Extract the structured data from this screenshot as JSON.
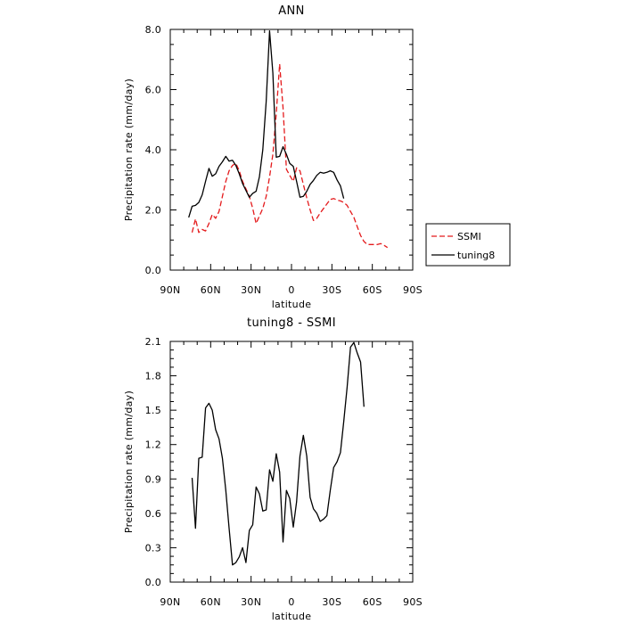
{
  "chart_data": [
    {
      "type": "line",
      "title": "ANN",
      "xlabel": "latitude",
      "ylabel": "Precipitation rate (mm/day)",
      "xlim": [
        90,
        -90
      ],
      "ylim": [
        0,
        8
      ],
      "x_ticks": [
        90,
        60,
        30,
        0,
        -30,
        -60,
        -90
      ],
      "x_tick_labels": [
        "90N",
        "60N",
        "30N",
        "0",
        "30S",
        "60S",
        "90S"
      ],
      "y_ticks": [
        0,
        2,
        4,
        6,
        8
      ],
      "y_tick_labels": [
        "0.0",
        "2.0",
        "4.0",
        "6.0",
        "8.0"
      ],
      "legend": {
        "position": "right",
        "entries": [
          "SSMI",
          "tuning8"
        ]
      },
      "series": [
        {
          "name": "SSMI",
          "color": "#e41a1c",
          "style": "dashed",
          "points": [
            [
              73.8,
              1.25
            ],
            [
              71.3,
              1.7
            ],
            [
              68.8,
              1.25
            ],
            [
              66.3,
              1.35
            ],
            [
              63.8,
              1.3
            ],
            [
              61.3,
              1.55
            ],
            [
              58.8,
              1.85
            ],
            [
              56.3,
              1.72
            ],
            [
              53.8,
              1.95
            ],
            [
              51.3,
              2.45
            ],
            [
              48.8,
              2.95
            ],
            [
              46.3,
              3.3
            ],
            [
              43.8,
              3.48
            ],
            [
              41.3,
              3.55
            ],
            [
              38.8,
              3.3
            ],
            [
              36.3,
              2.95
            ],
            [
              33.8,
              2.7
            ],
            [
              31.3,
              2.45
            ],
            [
              28.8,
              2.05
            ],
            [
              26.3,
              1.55
            ],
            [
              23.8,
              1.8
            ],
            [
              21.3,
              2.05
            ],
            [
              18.8,
              2.45
            ],
            [
              16.3,
              3.1
            ],
            [
              13.8,
              3.85
            ],
            [
              11.3,
              5.2
            ],
            [
              8.8,
              6.85
            ],
            [
              6.3,
              5.4
            ],
            [
              3.8,
              3.35
            ],
            [
              1.3,
              3.15
            ],
            [
              -1.3,
              2.95
            ],
            [
              -3.8,
              3.4
            ],
            [
              -6.3,
              3.3
            ],
            [
              -8.8,
              2.85
            ],
            [
              -11.3,
              2.4
            ],
            [
              -13.8,
              2.0
            ],
            [
              -16.3,
              1.65
            ],
            [
              -18.8,
              1.72
            ],
            [
              -21.3,
              1.9
            ],
            [
              -23.8,
              2.05
            ],
            [
              -26.3,
              2.2
            ],
            [
              -28.8,
              2.35
            ],
            [
              -31.3,
              2.38
            ],
            [
              -33.8,
              2.33
            ],
            [
              -36.3,
              2.3
            ],
            [
              -38.8,
              2.25
            ],
            [
              -41.3,
              2.15
            ],
            [
              -43.8,
              1.95
            ],
            [
              -46.3,
              1.75
            ],
            [
              -48.8,
              1.45
            ],
            [
              -51.3,
              1.15
            ],
            [
              -53.8,
              0.95
            ],
            [
              -56.3,
              0.85
            ],
            [
              -58.8,
              0.85
            ],
            [
              -61.3,
              0.85
            ],
            [
              -63.8,
              0.85
            ],
            [
              -66.3,
              0.88
            ],
            [
              -68.8,
              0.82
            ],
            [
              -71.3,
              0.75
            ]
          ]
        },
        {
          "name": "tuning8",
          "color": "#000000",
          "style": "solid",
          "points": [
            [
              76.3,
              1.75
            ],
            [
              73.8,
              2.12
            ],
            [
              71.3,
              2.15
            ],
            [
              68.8,
              2.25
            ],
            [
              66.3,
              2.5
            ],
            [
              63.8,
              2.95
            ],
            [
              61.3,
              3.38
            ],
            [
              58.8,
              3.12
            ],
            [
              56.3,
              3.2
            ],
            [
              53.8,
              3.45
            ],
            [
              51.3,
              3.6
            ],
            [
              48.8,
              3.78
            ],
            [
              46.3,
              3.62
            ],
            [
              43.8,
              3.65
            ],
            [
              41.3,
              3.48
            ],
            [
              38.8,
              3.2
            ],
            [
              36.3,
              2.88
            ],
            [
              33.8,
              2.65
            ],
            [
              31.3,
              2.42
            ],
            [
              28.8,
              2.55
            ],
            [
              26.3,
              2.62
            ],
            [
              23.8,
              3.1
            ],
            [
              21.3,
              4.0
            ],
            [
              18.8,
              5.6
            ],
            [
              16.3,
              7.95
            ],
            [
              13.8,
              6.55
            ],
            [
              11.3,
              3.75
            ],
            [
              8.8,
              3.78
            ],
            [
              6.3,
              4.1
            ],
            [
              3.8,
              3.85
            ],
            [
              1.3,
              3.55
            ],
            [
              -1.3,
              3.45
            ],
            [
              -3.8,
              2.95
            ],
            [
              -6.3,
              2.42
            ],
            [
              -8.8,
              2.45
            ],
            [
              -11.3,
              2.62
            ],
            [
              -13.8,
              2.85
            ],
            [
              -16.3,
              2.98
            ],
            [
              -18.8,
              3.15
            ],
            [
              -21.3,
              3.25
            ],
            [
              -23.8,
              3.22
            ],
            [
              -26.3,
              3.25
            ],
            [
              -28.8,
              3.3
            ],
            [
              -31.3,
              3.25
            ],
            [
              -33.8,
              3.0
            ],
            [
              -36.3,
              2.8
            ],
            [
              -38.8,
              2.38
            ]
          ]
        }
      ]
    },
    {
      "type": "line",
      "title": "tuning8 - SSMI",
      "xlabel": "latitude",
      "ylabel": "Precipitation rate (mm/day)",
      "xlim": [
        90,
        -90
      ],
      "ylim": [
        0,
        2.1
      ],
      "x_ticks": [
        90,
        60,
        30,
        0,
        -30,
        -60,
        -90
      ],
      "x_tick_labels": [
        "90N",
        "60N",
        "30N",
        "0",
        "30S",
        "60S",
        "90S"
      ],
      "y_ticks": [
        0,
        0.3,
        0.6,
        0.9,
        1.2,
        1.5,
        1.8,
        2.1
      ],
      "y_tick_labels": [
        "0.0",
        "0.3",
        "0.6",
        "0.9",
        "1.2",
        "1.5",
        "1.8",
        "2.1"
      ],
      "series": [
        {
          "color": "#000000",
          "style": "solid",
          "points": [
            [
              73.8,
              0.91
            ],
            [
              71.3,
              0.47
            ],
            [
              68.8,
              1.08
            ],
            [
              66.3,
              1.09
            ],
            [
              63.8,
              1.52
            ],
            [
              61.3,
              1.56
            ],
            [
              58.8,
              1.5
            ],
            [
              56.3,
              1.33
            ],
            [
              53.8,
              1.25
            ],
            [
              51.3,
              1.08
            ],
            [
              48.8,
              0.8
            ],
            [
              46.3,
              0.47
            ],
            [
              43.8,
              0.15
            ],
            [
              41.3,
              0.17
            ],
            [
              38.8,
              0.22
            ],
            [
              36.3,
              0.3
            ],
            [
              33.8,
              0.17
            ],
            [
              31.3,
              0.45
            ],
            [
              28.8,
              0.5
            ],
            [
              26.3,
              0.83
            ],
            [
              23.8,
              0.77
            ],
            [
              21.3,
              0.62
            ],
            [
              18.8,
              0.63
            ],
            [
              16.3,
              0.98
            ],
            [
              13.8,
              0.88
            ],
            [
              11.3,
              1.12
            ],
            [
              8.8,
              0.96
            ],
            [
              6.3,
              0.35
            ],
            [
              3.8,
              0.8
            ],
            [
              1.3,
              0.73
            ],
            [
              -1.3,
              0.48
            ],
            [
              -3.8,
              0.7
            ],
            [
              -6.3,
              1.1
            ],
            [
              -8.8,
              1.28
            ],
            [
              -11.3,
              1.1
            ],
            [
              -13.8,
              0.74
            ],
            [
              -16.3,
              0.64
            ],
            [
              -18.8,
              0.6
            ],
            [
              -21.3,
              0.53
            ],
            [
              -23.8,
              0.55
            ],
            [
              -26.3,
              0.58
            ],
            [
              -28.8,
              0.8
            ],
            [
              -31.3,
              1.0
            ],
            [
              -33.8,
              1.05
            ],
            [
              -36.3,
              1.13
            ],
            [
              -38.8,
              1.4
            ],
            [
              -41.3,
              1.7
            ],
            [
              -43.8,
              2.05
            ],
            [
              -46.3,
              2.09
            ],
            [
              -48.8,
              2.0
            ],
            [
              -51.3,
              1.92
            ],
            [
              -53.8,
              1.53
            ]
          ]
        }
      ]
    }
  ]
}
